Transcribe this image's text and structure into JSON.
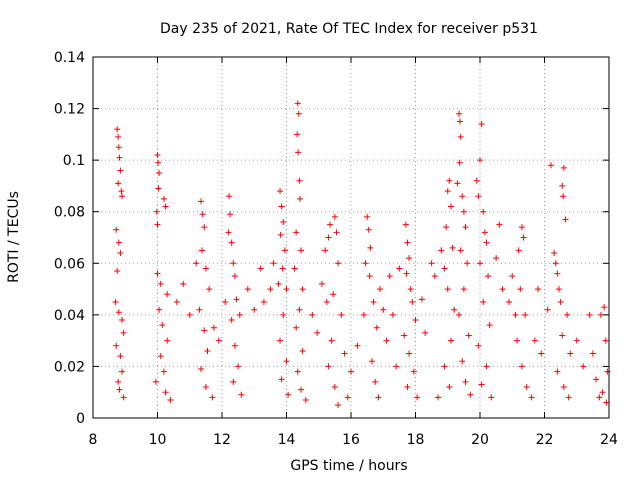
{
  "chart_data": {
    "type": "scatter",
    "title": "Day 235 of 2021, Rate Of TEC Index for receiver p531",
    "xlabel": "GPS time / hours",
    "ylabel": "ROTI / TECUs",
    "xlim": [
      8,
      24
    ],
    "ylim": [
      0,
      0.14
    ],
    "xticks": [
      8,
      10,
      12,
      14,
      16,
      18,
      20,
      22,
      24
    ],
    "yticks": [
      0,
      0.02,
      0.04,
      0.06,
      0.08,
      0.1,
      0.12,
      0.14
    ],
    "xtick_labels": [
      "8",
      "10",
      "12",
      "14",
      "16",
      "18",
      "20",
      "22",
      "24"
    ],
    "ytick_labels": [
      "0",
      "0.02",
      "0.04",
      "0.06",
      "0.08",
      "0.1",
      "0.12",
      "0.14"
    ],
    "grid": true,
    "marker": "+",
    "color": "#ff0000",
    "series": [
      {
        "name": "ROTI",
        "points": [
          [
            8.75,
            0.112
          ],
          [
            8.78,
            0.109
          ],
          [
            8.8,
            0.105
          ],
          [
            8.82,
            0.101
          ],
          [
            8.85,
            0.096
          ],
          [
            8.78,
            0.091
          ],
          [
            8.88,
            0.088
          ],
          [
            8.9,
            0.086
          ],
          [
            8.72,
            0.073
          ],
          [
            8.8,
            0.068
          ],
          [
            8.85,
            0.064
          ],
          [
            8.75,
            0.057
          ],
          [
            8.7,
            0.045
          ],
          [
            8.8,
            0.041
          ],
          [
            8.9,
            0.038
          ],
          [
            8.95,
            0.033
          ],
          [
            8.72,
            0.028
          ],
          [
            8.85,
            0.024
          ],
          [
            8.9,
            0.018
          ],
          [
            8.78,
            0.014
          ],
          [
            8.82,
            0.011
          ],
          [
            8.95,
            0.008
          ],
          [
            10.0,
            0.102
          ],
          [
            10.02,
            0.099
          ],
          [
            10.05,
            0.095
          ],
          [
            10.03,
            0.089
          ],
          [
            9.98,
            0.08
          ],
          [
            10.0,
            0.075
          ],
          [
            10.2,
            0.085
          ],
          [
            10.25,
            0.082
          ],
          [
            10.0,
            0.056
          ],
          [
            10.1,
            0.052
          ],
          [
            10.3,
            0.048
          ],
          [
            10.05,
            0.042
          ],
          [
            10.15,
            0.036
          ],
          [
            10.3,
            0.03
          ],
          [
            10.1,
            0.024
          ],
          [
            10.2,
            0.018
          ],
          [
            9.95,
            0.014
          ],
          [
            10.25,
            0.01
          ],
          [
            10.4,
            0.007
          ],
          [
            10.6,
            0.045
          ],
          [
            10.8,
            0.052
          ],
          [
            11.0,
            0.04
          ],
          [
            11.2,
            0.06
          ],
          [
            11.35,
            0.084
          ],
          [
            11.4,
            0.079
          ],
          [
            11.45,
            0.074
          ],
          [
            11.38,
            0.065
          ],
          [
            11.5,
            0.058
          ],
          [
            11.6,
            0.05
          ],
          [
            11.3,
            0.042
          ],
          [
            11.45,
            0.034
          ],
          [
            11.55,
            0.026
          ],
          [
            11.35,
            0.019
          ],
          [
            11.5,
            0.012
          ],
          [
            11.7,
            0.008
          ],
          [
            11.75,
            0.035
          ],
          [
            11.9,
            0.03
          ],
          [
            12.1,
            0.045
          ],
          [
            12.2,
            0.072
          ],
          [
            12.22,
            0.086
          ],
          [
            12.25,
            0.079
          ],
          [
            12.3,
            0.068
          ],
          [
            12.35,
            0.06
          ],
          [
            12.4,
            0.055
          ],
          [
            12.45,
            0.046
          ],
          [
            12.3,
            0.038
          ],
          [
            12.4,
            0.028
          ],
          [
            12.5,
            0.02
          ],
          [
            12.35,
            0.014
          ],
          [
            12.6,
            0.009
          ],
          [
            12.55,
            0.04
          ],
          [
            12.8,
            0.05
          ],
          [
            13.0,
            0.042
          ],
          [
            13.2,
            0.058
          ],
          [
            13.3,
            0.045
          ],
          [
            13.5,
            0.05
          ],
          [
            13.6,
            0.06
          ],
          [
            13.75,
            0.052
          ],
          [
            13.8,
            0.088
          ],
          [
            13.85,
            0.082
          ],
          [
            13.9,
            0.076
          ],
          [
            13.82,
            0.071
          ],
          [
            13.95,
            0.065
          ],
          [
            13.88,
            0.058
          ],
          [
            14.0,
            0.05
          ],
          [
            13.9,
            0.04
          ],
          [
            13.8,
            0.03
          ],
          [
            14.0,
            0.022
          ],
          [
            13.85,
            0.015
          ],
          [
            14.05,
            0.009
          ],
          [
            14.35,
            0.122
          ],
          [
            14.38,
            0.118
          ],
          [
            14.33,
            0.11
          ],
          [
            14.36,
            0.103
          ],
          [
            14.4,
            0.092
          ],
          [
            14.42,
            0.085
          ],
          [
            14.3,
            0.072
          ],
          [
            14.45,
            0.065
          ],
          [
            14.25,
            0.058
          ],
          [
            14.5,
            0.05
          ],
          [
            14.4,
            0.042
          ],
          [
            14.3,
            0.035
          ],
          [
            14.5,
            0.026
          ],
          [
            14.35,
            0.018
          ],
          [
            14.45,
            0.011
          ],
          [
            14.6,
            0.007
          ],
          [
            14.8,
            0.04
          ],
          [
            14.95,
            0.033
          ],
          [
            15.1,
            0.052
          ],
          [
            15.2,
            0.065
          ],
          [
            15.3,
            0.07
          ],
          [
            15.35,
            0.075
          ],
          [
            15.25,
            0.045
          ],
          [
            15.4,
            0.03
          ],
          [
            15.5,
            0.078
          ],
          [
            15.55,
            0.072
          ],
          [
            15.6,
            0.06
          ],
          [
            15.45,
            0.048
          ],
          [
            15.7,
            0.04
          ],
          [
            15.3,
            0.02
          ],
          [
            15.5,
            0.012
          ],
          [
            15.8,
            0.025
          ],
          [
            15.9,
            0.008
          ],
          [
            15.6,
            0.005
          ],
          [
            16.0,
            0.018
          ],
          [
            16.2,
            0.028
          ],
          [
            16.4,
            0.04
          ],
          [
            16.45,
            0.06
          ],
          [
            16.5,
            0.078
          ],
          [
            16.55,
            0.073
          ],
          [
            16.6,
            0.066
          ],
          [
            16.58,
            0.055
          ],
          [
            16.7,
            0.045
          ],
          [
            16.8,
            0.035
          ],
          [
            16.9,
            0.05
          ],
          [
            17.0,
            0.042
          ],
          [
            16.65,
            0.022
          ],
          [
            16.75,
            0.014
          ],
          [
            16.85,
            0.008
          ],
          [
            17.1,
            0.03
          ],
          [
            17.2,
            0.055
          ],
          [
            17.3,
            0.04
          ],
          [
            17.4,
            0.02
          ],
          [
            17.5,
            0.058
          ],
          [
            17.7,
            0.075
          ],
          [
            17.75,
            0.068
          ],
          [
            17.8,
            0.062
          ],
          [
            17.72,
            0.056
          ],
          [
            17.85,
            0.05
          ],
          [
            17.9,
            0.045
          ],
          [
            18.0,
            0.038
          ],
          [
            17.65,
            0.032
          ],
          [
            17.8,
            0.025
          ],
          [
            17.95,
            0.018
          ],
          [
            17.75,
            0.012
          ],
          [
            18.05,
            0.008
          ],
          [
            18.2,
            0.046
          ],
          [
            18.3,
            0.033
          ],
          [
            18.5,
            0.06
          ],
          [
            18.6,
            0.055
          ],
          [
            18.8,
            0.065
          ],
          [
            18.9,
            0.058
          ],
          [
            19.0,
            0.088
          ],
          [
            19.05,
            0.092
          ],
          [
            19.1,
            0.082
          ],
          [
            18.95,
            0.074
          ],
          [
            19.15,
            0.066
          ],
          [
            19.0,
            0.05
          ],
          [
            19.2,
            0.042
          ],
          [
            19.1,
            0.03
          ],
          [
            18.9,
            0.02
          ],
          [
            19.05,
            0.012
          ],
          [
            18.7,
            0.008
          ],
          [
            19.35,
            0.118
          ],
          [
            19.38,
            0.115
          ],
          [
            19.4,
            0.109
          ],
          [
            19.37,
            0.099
          ],
          [
            19.3,
            0.091
          ],
          [
            19.45,
            0.086
          ],
          [
            19.5,
            0.08
          ],
          [
            19.55,
            0.074
          ],
          [
            19.4,
            0.065
          ],
          [
            19.6,
            0.06
          ],
          [
            19.5,
            0.05
          ],
          [
            19.35,
            0.04
          ],
          [
            19.65,
            0.032
          ],
          [
            19.45,
            0.022
          ],
          [
            19.55,
            0.014
          ],
          [
            19.7,
            0.009
          ],
          [
            19.9,
            0.092
          ],
          [
            20.0,
            0.1
          ],
          [
            20.05,
            0.114
          ],
          [
            19.95,
            0.086
          ],
          [
            20.1,
            0.08
          ],
          [
            20.15,
            0.072
          ],
          [
            20.2,
            0.068
          ],
          [
            20.0,
            0.06
          ],
          [
            20.25,
            0.055
          ],
          [
            20.1,
            0.045
          ],
          [
            20.3,
            0.036
          ],
          [
            19.95,
            0.028
          ],
          [
            20.2,
            0.02
          ],
          [
            20.05,
            0.013
          ],
          [
            20.35,
            0.008
          ],
          [
            20.5,
            0.062
          ],
          [
            20.6,
            0.075
          ],
          [
            20.7,
            0.05
          ],
          [
            20.9,
            0.045
          ],
          [
            21.0,
            0.055
          ],
          [
            21.1,
            0.04
          ],
          [
            21.2,
            0.065
          ],
          [
            21.3,
            0.074
          ],
          [
            21.35,
            0.07
          ],
          [
            21.25,
            0.05
          ],
          [
            21.4,
            0.04
          ],
          [
            21.15,
            0.03
          ],
          [
            21.3,
            0.02
          ],
          [
            21.45,
            0.012
          ],
          [
            21.6,
            0.008
          ],
          [
            21.7,
            0.03
          ],
          [
            21.8,
            0.05
          ],
          [
            21.9,
            0.025
          ],
          [
            22.1,
            0.042
          ],
          [
            22.2,
            0.098
          ],
          [
            22.3,
            0.064
          ],
          [
            22.35,
            0.06
          ],
          [
            22.4,
            0.056
          ],
          [
            22.45,
            0.05
          ],
          [
            22.6,
            0.097
          ],
          [
            22.55,
            0.09
          ],
          [
            22.58,
            0.086
          ],
          [
            22.65,
            0.077
          ],
          [
            22.5,
            0.045
          ],
          [
            22.7,
            0.04
          ],
          [
            22.55,
            0.032
          ],
          [
            22.8,
            0.025
          ],
          [
            22.4,
            0.018
          ],
          [
            22.6,
            0.012
          ],
          [
            22.75,
            0.008
          ],
          [
            23.0,
            0.03
          ],
          [
            23.2,
            0.02
          ],
          [
            23.4,
            0.04
          ],
          [
            23.5,
            0.025
          ],
          [
            23.6,
            0.015
          ],
          [
            23.75,
            0.04
          ],
          [
            23.85,
            0.043
          ],
          [
            23.9,
            0.03
          ],
          [
            23.95,
            0.018
          ],
          [
            23.8,
            0.01
          ],
          [
            23.92,
            0.006
          ],
          [
            23.7,
            0.008
          ]
        ]
      }
    ]
  }
}
